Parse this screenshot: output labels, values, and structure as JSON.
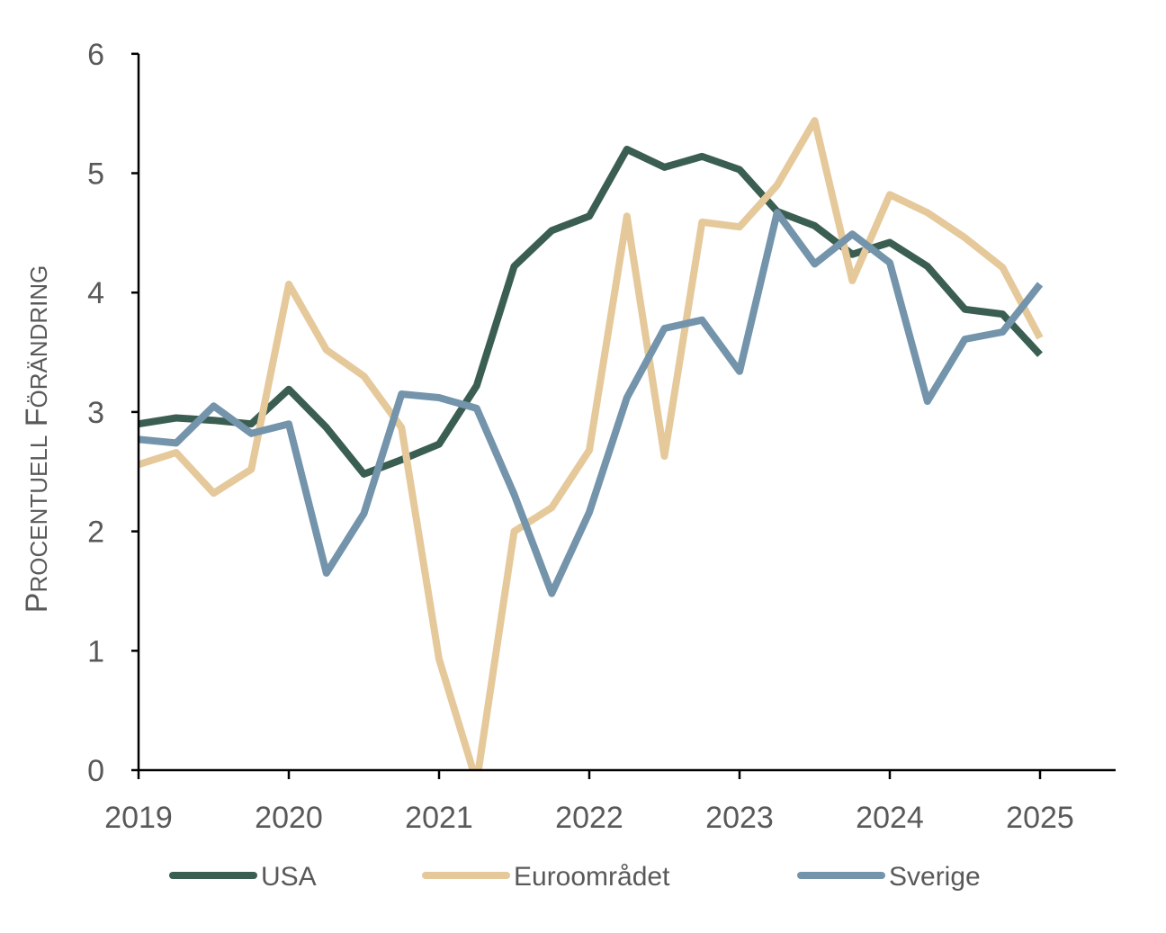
{
  "chart_data": {
    "type": "line",
    "title": "",
    "xlabel": "",
    "ylabel": "Procentuell förändring",
    "ylim": [
      0,
      6
    ],
    "xlim": [
      2019,
      2025.5
    ],
    "yticks": [
      "0",
      "1",
      "2",
      "3",
      "4",
      "5",
      "6"
    ],
    "xticks": [
      "2019",
      "2020",
      "2021",
      "2022",
      "2023",
      "2024",
      "2025"
    ],
    "grid": false,
    "legend": "bottom",
    "x": [
      2019.0,
      2019.25,
      2019.5,
      2019.75,
      2020.0,
      2020.25,
      2020.5,
      2020.75,
      2021.0,
      2021.25,
      2021.5,
      2021.75,
      2022.0,
      2022.25,
      2022.5,
      2022.75,
      2023.0,
      2023.25,
      2023.5,
      2023.75,
      2024.0,
      2024.25,
      2024.5,
      2024.75,
      2025.0
    ],
    "series": [
      {
        "name": "USA",
        "color": "#3b5e53",
        "values": [
          2.9,
          2.95,
          2.93,
          2.9,
          3.19,
          2.87,
          2.48,
          2.6,
          2.73,
          3.22,
          4.22,
          4.52,
          4.64,
          5.2,
          5.05,
          5.14,
          5.03,
          4.68,
          4.56,
          4.32,
          4.42,
          4.22,
          3.86,
          3.82,
          3.48
        ]
      },
      {
        "name": "Euroområdet",
        "color": "#e5c99a",
        "values": [
          2.56,
          2.66,
          2.32,
          2.52,
          4.07,
          3.52,
          3.3,
          2.87,
          0.93,
          -0.1,
          2.0,
          2.2,
          2.68,
          4.64,
          2.63,
          4.59,
          4.55,
          4.9,
          5.44,
          4.1,
          4.82,
          4.67,
          4.46,
          4.21,
          3.62
        ]
      },
      {
        "name": "Sverige",
        "color": "#7394ab",
        "values": [
          2.77,
          2.74,
          3.05,
          2.82,
          2.9,
          1.65,
          2.15,
          3.15,
          3.12,
          3.03,
          2.31,
          1.48,
          2.16,
          3.12,
          3.7,
          3.77,
          3.34,
          4.67,
          4.24,
          4.49,
          4.25,
          3.09,
          3.61,
          3.67,
          4.07
        ]
      }
    ]
  }
}
